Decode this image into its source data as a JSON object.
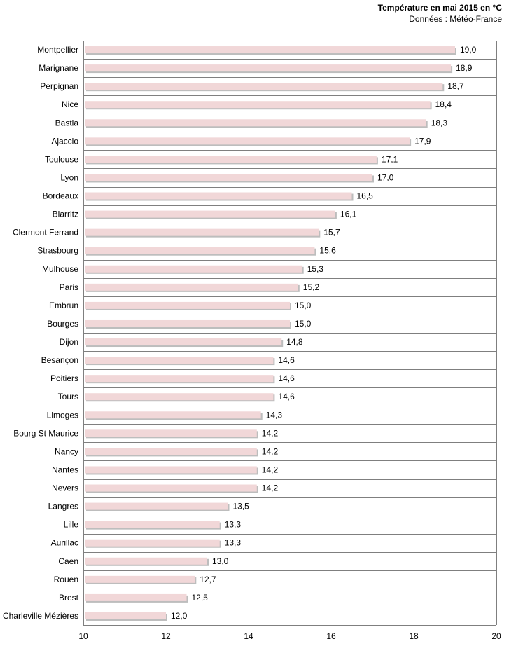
{
  "chart_data": {
    "type": "bar",
    "orientation": "horizontal",
    "title": "Température en mai 2015 en °C",
    "subtitle": "Données : Météo-France",
    "xlim": [
      10,
      20
    ],
    "x_ticks": [
      "10",
      "12",
      "14",
      "16",
      "18",
      "20"
    ],
    "x_tick_values": [
      10,
      12,
      14,
      16,
      18,
      20
    ],
    "bar_color": "#f1d7d8",
    "bar_shadow_color": "#bdbdbd",
    "categories": [
      "Montpellier",
      "Marignane",
      "Perpignan",
      "Nice",
      "Bastia",
      "Ajaccio",
      "Toulouse",
      "Lyon",
      "Bordeaux",
      "Biarritz",
      "Clermont Ferrand",
      "Strasbourg",
      "Mulhouse",
      "Paris",
      "Embrun",
      "Bourges",
      "Dijon",
      "Besançon",
      "Poitiers",
      "Tours",
      "Limoges",
      "Bourg St Maurice",
      "Nancy",
      "Nantes",
      "Nevers",
      "Langres",
      "Lille",
      "Aurillac",
      "Caen",
      "Rouen",
      "Brest",
      "Charleville Mézières"
    ],
    "values": [
      19.0,
      18.9,
      18.7,
      18.4,
      18.3,
      17.9,
      17.1,
      17.0,
      16.5,
      16.1,
      15.7,
      15.6,
      15.3,
      15.2,
      15.0,
      15.0,
      14.8,
      14.6,
      14.6,
      14.6,
      14.3,
      14.2,
      14.2,
      14.2,
      14.2,
      13.5,
      13.3,
      13.3,
      13.0,
      12.7,
      12.5,
      12.0
    ],
    "value_labels": [
      "19,0",
      "18,9",
      "18,7",
      "18,4",
      "18,3",
      "17,9",
      "17,1",
      "17,0",
      "16,5",
      "16,1",
      "15,7",
      "15,6",
      "15,3",
      "15,2",
      "15,0",
      "15,0",
      "14,8",
      "14,6",
      "14,6",
      "14,6",
      "14,3",
      "14,2",
      "14,2",
      "14,2",
      "14,2",
      "13,5",
      "13,3",
      "13,3",
      "13,0",
      "12,7",
      "12,5",
      "12,0"
    ]
  }
}
